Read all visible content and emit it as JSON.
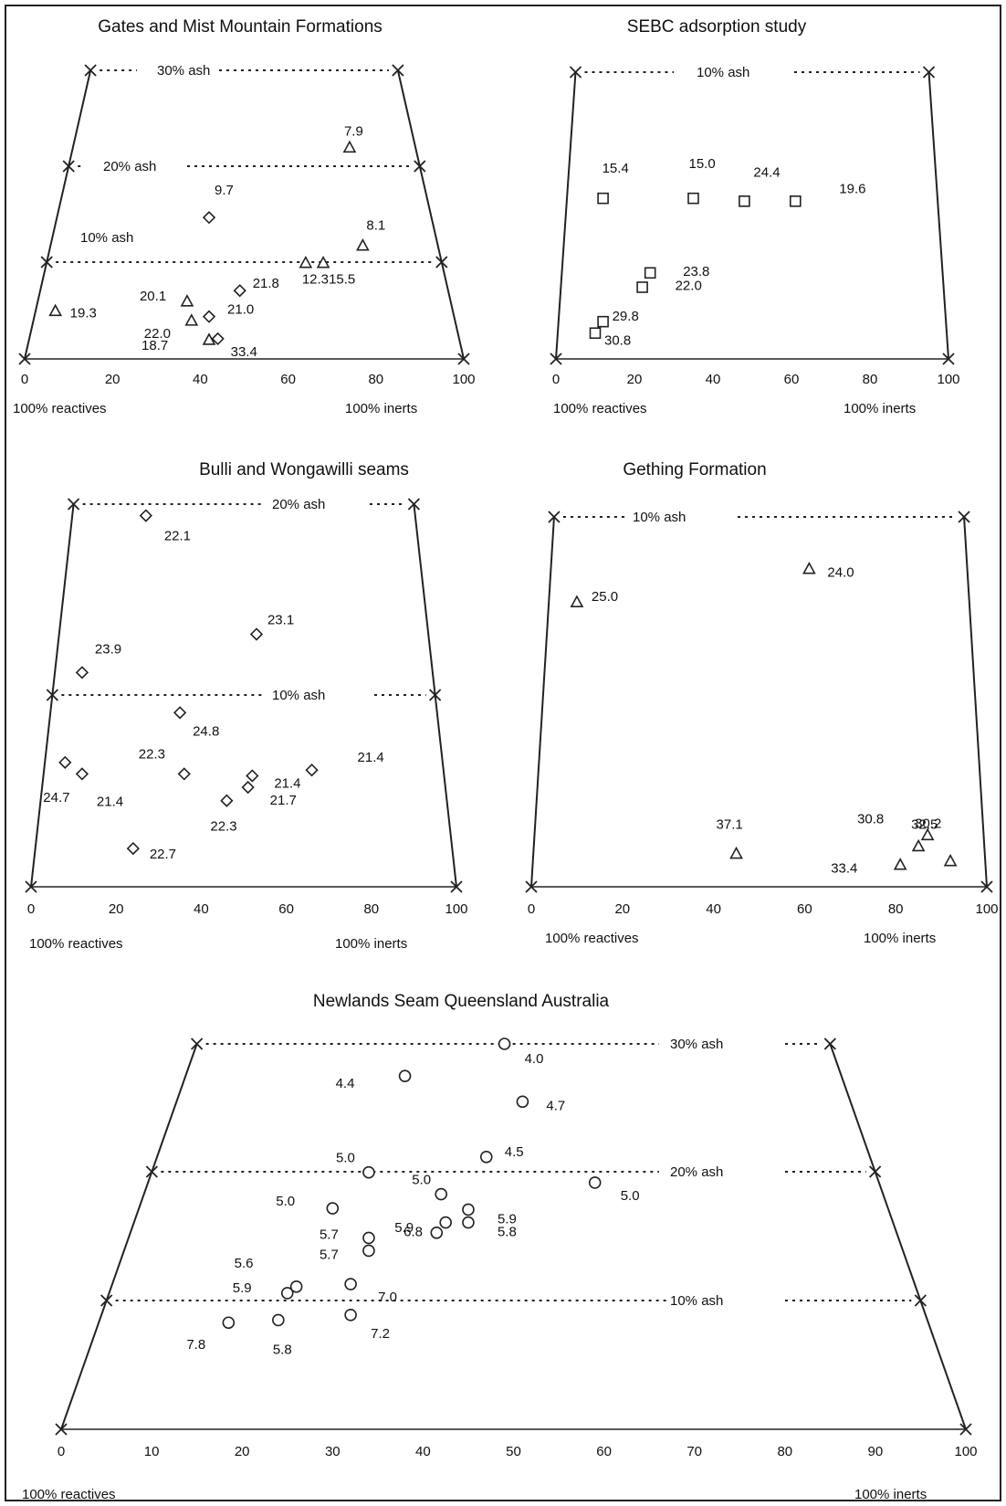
{
  "chart_data": [
    {
      "type": "scatter",
      "title": "Gates and Mist Mountain Formations",
      "marker": "mixed",
      "x_ticks": [
        "0",
        "20",
        "40",
        "60",
        "80",
        "100"
      ],
      "left_label": "100% reactives",
      "right_label": "100% inerts",
      "ash_levels": [
        {
          "ash": 30,
          "label": "30% ash"
        },
        {
          "ash": 20,
          "label": "20% ash"
        },
        {
          "ash": 10,
          "label": "10% ash"
        }
      ],
      "points": [
        {
          "x": 74,
          "ash": 22,
          "marker": "triangle",
          "label": "7.9"
        },
        {
          "x": 42,
          "ash": 14.7,
          "marker": "diamond",
          "label": "9.7"
        },
        {
          "x": 77,
          "ash": 11.8,
          "marker": "triangle",
          "label": "8.1"
        },
        {
          "x": 64,
          "ash": 10,
          "marker": "triangle",
          "label": "12.3"
        },
        {
          "x": 68,
          "ash": 10,
          "marker": "triangle",
          "label": "15.5"
        },
        {
          "x": 49,
          "ash": 7.1,
          "marker": "diamond",
          "label": "21.8"
        },
        {
          "x": 7,
          "ash": 5,
          "marker": "triangle",
          "label": "19.3"
        },
        {
          "x": 37,
          "ash": 6,
          "marker": "triangle",
          "label": "20.1"
        },
        {
          "x": 38,
          "ash": 4,
          "marker": "triangle",
          "label": "22.0"
        },
        {
          "x": 42,
          "ash": 4.4,
          "marker": "diamond",
          "label": "21.0"
        },
        {
          "x": 42,
          "ash": 2,
          "marker": "triangle",
          "label": "18.7"
        },
        {
          "x": 44,
          "ash": 2.1,
          "marker": "diamond",
          "label": "33.4"
        }
      ]
    },
    {
      "type": "scatter",
      "title": "SEBC adsorption study",
      "marker": "square",
      "x_ticks": [
        "0",
        "20",
        "40",
        "60",
        "80",
        "100"
      ],
      "left_label": "100% reactives",
      "right_label": "100% inerts",
      "ash_levels": [
        {
          "ash": 10,
          "label": "10% ash"
        }
      ],
      "points": [
        {
          "x": 12,
          "ash": 5.6,
          "label": "15.4"
        },
        {
          "x": 35,
          "ash": 5.6,
          "label": "15.0"
        },
        {
          "x": 48,
          "ash": 5.5,
          "label": "24.4"
        },
        {
          "x": 61,
          "ash": 5.5,
          "label": "19.6"
        },
        {
          "x": 24,
          "ash": 3.0,
          "label": "23.8"
        },
        {
          "x": 22,
          "ash": 2.5,
          "label": "22.0"
        },
        {
          "x": 12,
          "ash": 1.3,
          "label": "29.8"
        },
        {
          "x": 10,
          "ash": 0.9,
          "label": "30.8"
        }
      ]
    },
    {
      "type": "scatter",
      "title": "Bulli and Wongawilli seams",
      "marker": "diamond",
      "x_ticks": [
        "0",
        "20",
        "40",
        "60",
        "80",
        "100"
      ],
      "left_label": "100% reactives",
      "right_label": "100% inerts",
      "ash_levels": [
        {
          "ash": 20,
          "label": "20% ash"
        },
        {
          "ash": 10,
          "label": "10% ash"
        }
      ],
      "points": [
        {
          "x": 27,
          "ash": 19.4,
          "label": "22.1"
        },
        {
          "x": 53,
          "ash": 13.2,
          "label": "23.1"
        },
        {
          "x": 12,
          "ash": 11.2,
          "label": "23.9"
        },
        {
          "x": 35,
          "ash": 9.1,
          "label": "24.8"
        },
        {
          "x": 8,
          "ash": 6.5,
          "label": "24.7"
        },
        {
          "x": 12,
          "ash": 5.9,
          "label": "21.4"
        },
        {
          "x": 36,
          "ash": 5.9,
          "label": "22.3"
        },
        {
          "x": 52,
          "ash": 5.8,
          "label": "21.4"
        },
        {
          "x": 51,
          "ash": 5.2,
          "label": "21.7"
        },
        {
          "x": 46,
          "ash": 4.5,
          "label": "22.3"
        },
        {
          "x": 66,
          "ash": 6.1,
          "label": "21.4"
        },
        {
          "x": 24,
          "ash": 2.0,
          "label": "22.7"
        }
      ]
    },
    {
      "type": "scatter",
      "title": "Gething Formation",
      "marker": "triangle",
      "x_ticks": [
        "0",
        "20",
        "40",
        "60",
        "80",
        "100"
      ],
      "left_label": "100% reactives",
      "right_label": "100% inerts",
      "ash_levels": [
        {
          "ash": 10,
          "label": "10% ash"
        }
      ],
      "points": [
        {
          "x": 61,
          "ash": 8.6,
          "label": "24.0"
        },
        {
          "x": 10,
          "ash": 7.7,
          "label": "25.0"
        },
        {
          "x": 45,
          "ash": 0.9,
          "label": "37.1"
        },
        {
          "x": 87,
          "ash": 1.4,
          "label": "30.2"
        },
        {
          "x": 85,
          "ash": 1.1,
          "label": "32.5"
        },
        {
          "x": 92,
          "ash": 0.7,
          "label": "30.8"
        },
        {
          "x": 81,
          "ash": 0.6,
          "label": "33.4"
        }
      ]
    },
    {
      "type": "scatter",
      "title": "Newlands Seam Queensland Australia",
      "marker": "circle",
      "x_ticks": [
        "0",
        "10",
        "20",
        "30",
        "40",
        "50",
        "60",
        "70",
        "80",
        "90",
        "100"
      ],
      "left_label": "100% reactives",
      "right_label": "100% inerts",
      "ash_levels": [
        {
          "ash": 30,
          "label": "30% ash"
        },
        {
          "ash": 20,
          "label": "20% ash"
        },
        {
          "ash": 10,
          "label": "10% ash"
        }
      ],
      "points": [
        {
          "x": 49,
          "ash": 30,
          "label": "4.0"
        },
        {
          "x": 38,
          "ash": 27.5,
          "label": "4.4"
        },
        {
          "x": 51,
          "ash": 25.5,
          "label": "4.7"
        },
        {
          "x": 47,
          "ash": 21.2,
          "label": "4.5"
        },
        {
          "x": 34,
          "ash": 20,
          "label": "5.0"
        },
        {
          "x": 59,
          "ash": 19.2,
          "label": "5.0"
        },
        {
          "x": 30,
          "ash": 17.2,
          "label": "5.0"
        },
        {
          "x": 42,
          "ash": 18.3,
          "label": "5.0"
        },
        {
          "x": 45,
          "ash": 17.1,
          "label": "5.9"
        },
        {
          "x": 45,
          "ash": 16.1,
          "label": "5.8"
        },
        {
          "x": 42.5,
          "ash": 16.1,
          "label": "6.8"
        },
        {
          "x": 41.5,
          "ash": 15.3,
          "label": "5.9"
        },
        {
          "x": 34,
          "ash": 14.9,
          "label": "5.7"
        },
        {
          "x": 34,
          "ash": 13.9,
          "label": "5.7"
        },
        {
          "x": 32,
          "ash": 11.3,
          "label": "7.0"
        },
        {
          "x": 26,
          "ash": 11.1,
          "label": "5.6"
        },
        {
          "x": 25,
          "ash": 10.6,
          "label": "5.9"
        },
        {
          "x": 32,
          "ash": 8.9,
          "label": "7.2"
        },
        {
          "x": 24,
          "ash": 8.5,
          "label": "5.8"
        },
        {
          "x": 18.5,
          "ash": 8.3,
          "label": "7.8"
        }
      ]
    }
  ]
}
